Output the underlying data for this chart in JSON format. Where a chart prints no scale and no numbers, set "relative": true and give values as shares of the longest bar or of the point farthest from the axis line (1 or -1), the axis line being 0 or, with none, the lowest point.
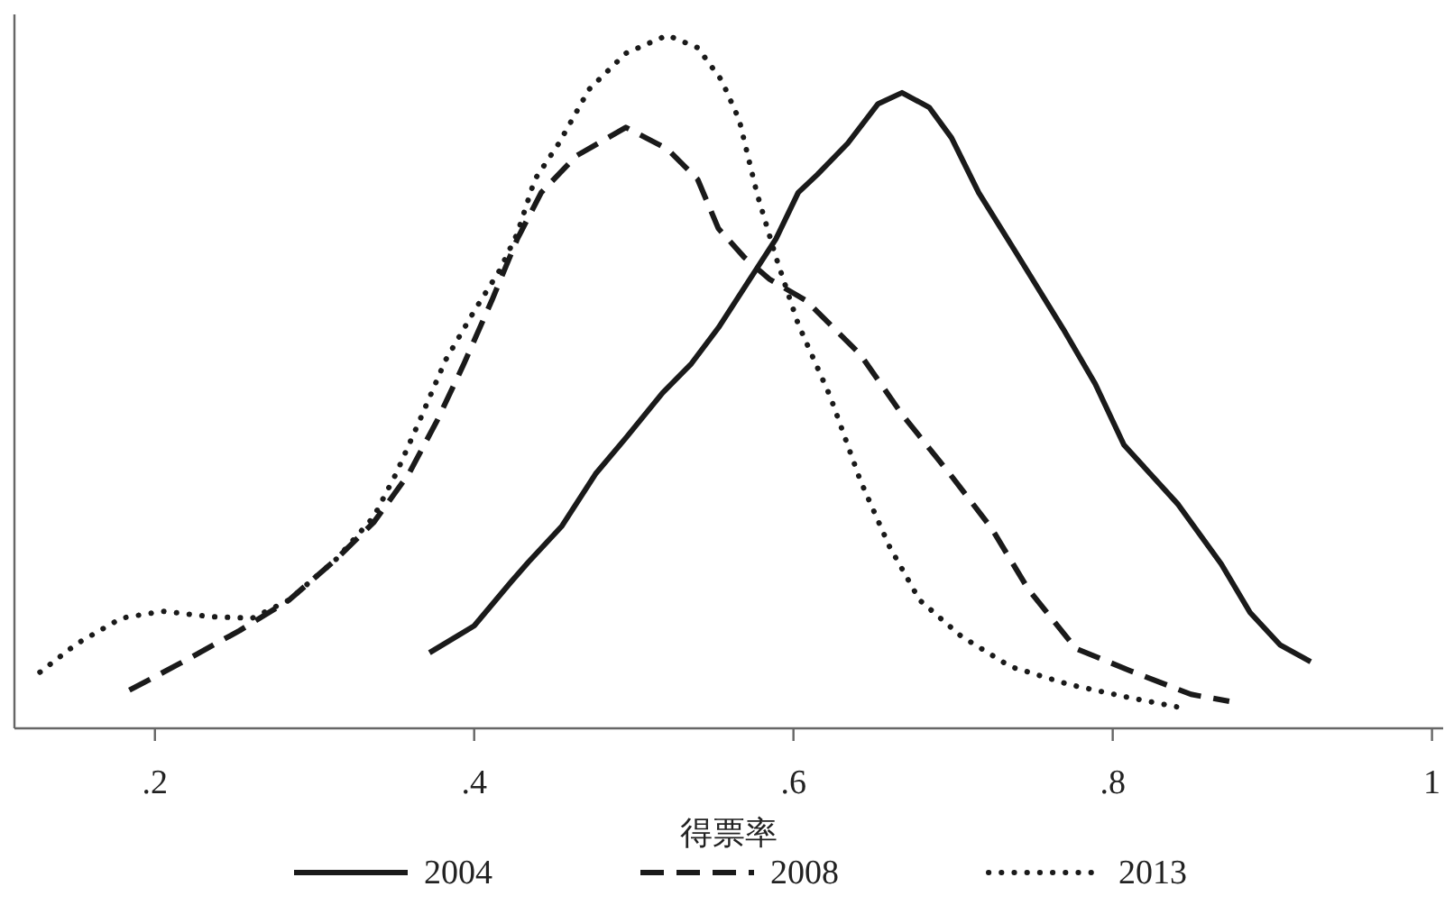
{
  "chart_data": {
    "type": "line",
    "relative": true,
    "xlabel": "得票率",
    "legend": "bottom",
    "xlim": [
      0.112,
      1.007
    ],
    "xticks": [
      {
        "value": 0.2,
        "label": ".2"
      },
      {
        "value": 0.4,
        "label": ".4"
      },
      {
        "value": 0.6,
        "label": ".6"
      },
      {
        "value": 0.8,
        "label": ".8"
      },
      1
    ],
    "series": [
      {
        "name": "2004",
        "color": "#1a1a1a",
        "line_style": "solid",
        "x": [
          0.372,
          0.4,
          0.423,
          0.434,
          0.455,
          0.476,
          0.495,
          0.518,
          0.536,
          0.553,
          0.589,
          0.603,
          0.615,
          0.634,
          0.653,
          0.668,
          0.685,
          0.699,
          0.716,
          0.739,
          0.769,
          0.789,
          0.807,
          0.841,
          0.868,
          0.886,
          0.905,
          0.924
        ],
        "values": [
          0.109,
          0.148,
          0.211,
          0.24,
          0.292,
          0.367,
          0.419,
          0.484,
          0.526,
          0.578,
          0.706,
          0.773,
          0.799,
          0.844,
          0.901,
          0.917,
          0.896,
          0.852,
          0.773,
          0.688,
          0.576,
          0.497,
          0.409,
          0.323,
          0.237,
          0.167,
          0.12,
          0.096
        ]
      },
      {
        "name": "2008",
        "color": "#1a1a1a",
        "line_style": "dashed",
        "x": [
          0.184,
          0.216,
          0.253,
          0.284,
          0.314,
          0.337,
          0.359,
          0.377,
          0.393,
          0.411,
          0.427,
          0.442,
          0.464,
          0.495,
          0.521,
          0.54,
          0.553,
          0.569,
          0.585,
          0.608,
          0.642,
          0.668,
          0.698,
          0.724,
          0.747,
          0.777,
          0.811,
          0.849,
          0.873
        ],
        "values": [
          0.055,
          0.094,
          0.141,
          0.185,
          0.245,
          0.297,
          0.367,
          0.445,
          0.523,
          0.617,
          0.706,
          0.773,
          0.826,
          0.867,
          0.836,
          0.792,
          0.721,
          0.68,
          0.648,
          0.617,
          0.539,
          0.453,
          0.367,
          0.289,
          0.201,
          0.115,
          0.083,
          0.049,
          0.039
        ]
      },
      {
        "name": "2013",
        "color": "#1a1a1a",
        "line_style": "dotted",
        "x": [
          0.128,
          0.151,
          0.179,
          0.205,
          0.235,
          0.261,
          0.284,
          0.314,
          0.337,
          0.351,
          0.366,
          0.382,
          0.4,
          0.416,
          0.427,
          0.438,
          0.453,
          0.472,
          0.495,
          0.521,
          0.54,
          0.555,
          0.566,
          0.577,
          0.589,
          0.603,
          0.623,
          0.642,
          0.66,
          0.679,
          0.705,
          0.736,
          0.773,
          0.811,
          0.84
        ],
        "values": [
          0.081,
          0.122,
          0.159,
          0.169,
          0.161,
          0.159,
          0.185,
          0.245,
          0.305,
          0.367,
          0.445,
          0.531,
          0.602,
          0.661,
          0.714,
          0.792,
          0.844,
          0.922,
          0.974,
          1,
          0.982,
          0.935,
          0.878,
          0.773,
          0.68,
          0.583,
          0.479,
          0.357,
          0.263,
          0.185,
          0.133,
          0.089,
          0.063,
          0.044,
          0.031
        ]
      }
    ]
  }
}
